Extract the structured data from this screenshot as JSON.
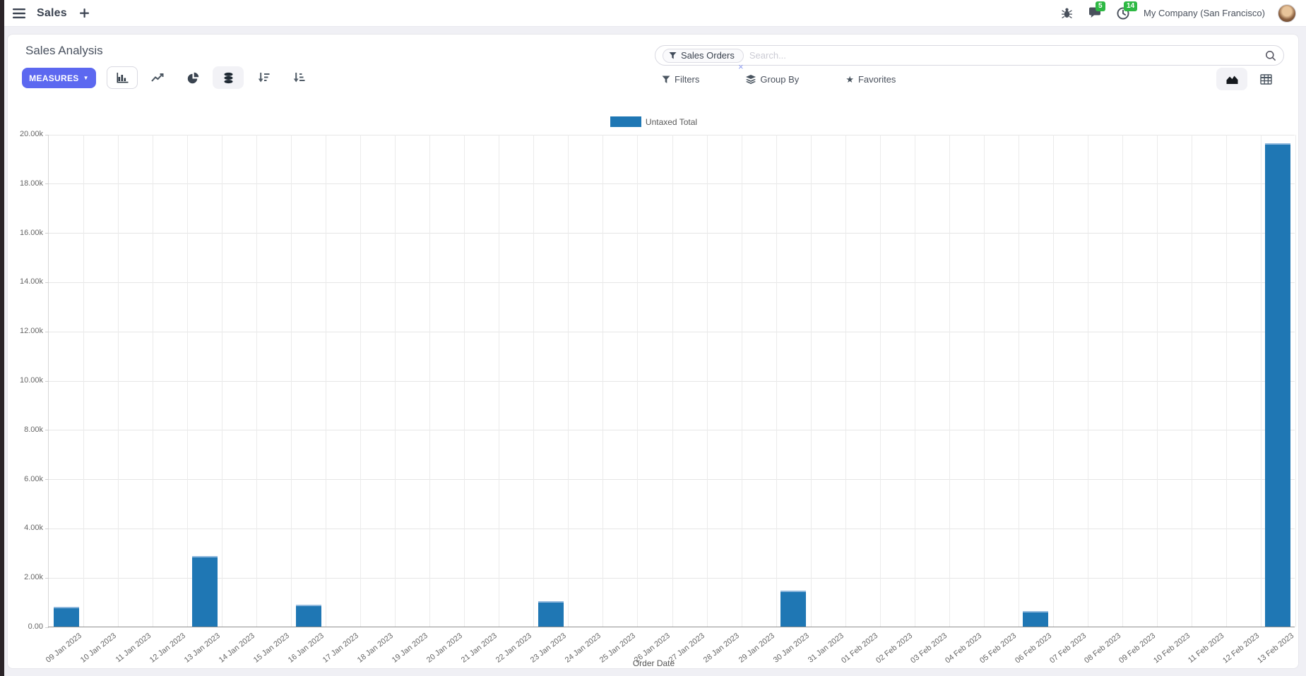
{
  "nav": {
    "app_name": "Sales",
    "chat_badge": "5",
    "activity_badge": "14",
    "company": "My Company (San Francisco)"
  },
  "control_panel": {
    "title": "Sales Analysis",
    "measures_label": "MEASURES",
    "search": {
      "facet": "Sales Orders",
      "facet_remove": "×",
      "placeholder": "Search...",
      "value": ""
    },
    "filters_label": "Filters",
    "group_by_label": "Group By",
    "favorites_label": "Favorites"
  },
  "icons": {
    "caret_down": "▼",
    "star": "★",
    "plus": "+"
  },
  "colors": {
    "accent": "#5c68f0",
    "badge_green": "#2eb944",
    "bar_blue": "#1f77b4"
  },
  "chart_data": {
    "type": "bar",
    "legend": "Untaxed Total",
    "legend_position": "top",
    "grid": true,
    "xlabel": "Order Date",
    "ylabel": "",
    "ylim": [
      0,
      20000
    ],
    "ytick_step": 2000,
    "ytick_labels": [
      "0.00",
      "2.00k",
      "4.00k",
      "6.00k",
      "8.00k",
      "10.00k",
      "12.00k",
      "14.00k",
      "16.00k",
      "18.00k",
      "20.00k"
    ],
    "categories": [
      "09 Jan 2023",
      "10 Jan 2023",
      "11 Jan 2023",
      "12 Jan 2023",
      "13 Jan 2023",
      "14 Jan 2023",
      "15 Jan 2023",
      "16 Jan 2023",
      "17 Jan 2023",
      "18 Jan 2023",
      "19 Jan 2023",
      "20 Jan 2023",
      "21 Jan 2023",
      "22 Jan 2023",
      "23 Jan 2023",
      "24 Jan 2023",
      "25 Jan 2023",
      "26 Jan 2023",
      "27 Jan 2023",
      "28 Jan 2023",
      "29 Jan 2023",
      "30 Jan 2023",
      "31 Jan 2023",
      "01 Feb 2023",
      "02 Feb 2023",
      "03 Feb 2023",
      "04 Feb 2023",
      "05 Feb 2023",
      "06 Feb 2023",
      "07 Feb 2023",
      "08 Feb 2023",
      "09 Feb 2023",
      "10 Feb 2023",
      "11 Feb 2023",
      "12 Feb 2023",
      "13 Feb 2023"
    ],
    "series": [
      {
        "name": "Untaxed Total",
        "values": [
          820,
          0,
          0,
          0,
          2900,
          0,
          0,
          930,
          0,
          0,
          0,
          0,
          0,
          0,
          1070,
          0,
          0,
          0,
          0,
          0,
          0,
          1500,
          0,
          0,
          0,
          0,
          0,
          0,
          650,
          0,
          0,
          0,
          0,
          0,
          0,
          19650
        ]
      }
    ]
  }
}
